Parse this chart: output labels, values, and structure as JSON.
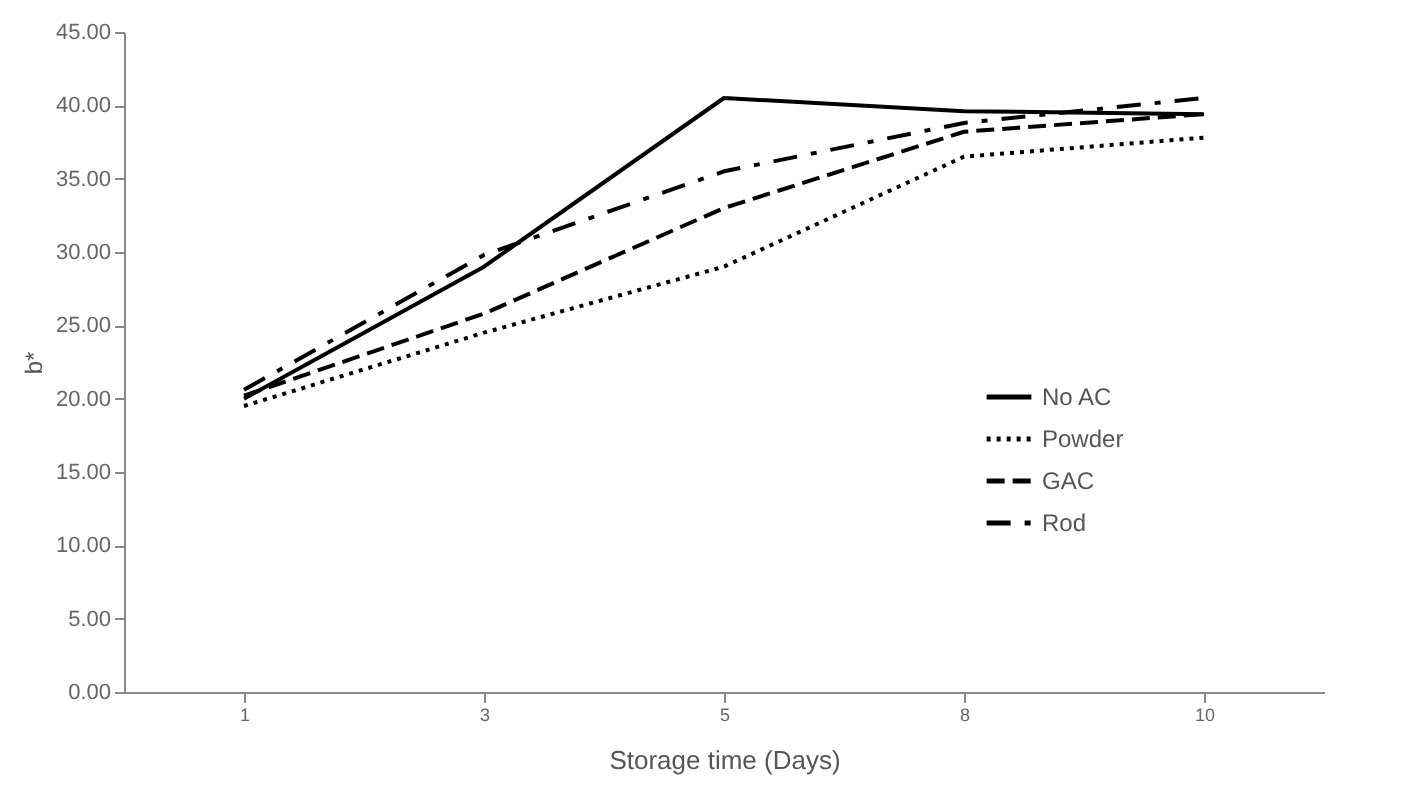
{
  "chart_data": {
    "type": "line",
    "xlabel": "Storage time (Days)",
    "ylabel": "b*",
    "categories": [
      "1",
      "3",
      "5",
      "8",
      "10"
    ],
    "series": [
      {
        "name": "No AC",
        "color": "#000000",
        "line_style": "solid",
        "values": [
          20.0,
          29.0,
          40.5,
          39.6,
          39.4
        ]
      },
      {
        "name": "Powder",
        "color": "#000000",
        "line_style": "dotted",
        "values": [
          19.5,
          24.5,
          29.0,
          36.5,
          37.8
        ]
      },
      {
        "name": "GAC",
        "color": "#000000",
        "line_style": "dashed",
        "values": [
          20.2,
          25.8,
          33.0,
          38.2,
          39.4
        ]
      },
      {
        "name": "Rod",
        "color": "#000000",
        "line_style": "dashdot",
        "values": [
          20.6,
          29.8,
          35.5,
          38.8,
          40.5
        ]
      }
    ],
    "ylim": [
      0,
      45
    ],
    "yticks": [
      {
        "value": 0,
        "label": "0.00"
      },
      {
        "value": 5,
        "label": "5.00"
      },
      {
        "value": 10,
        "label": "10.00"
      },
      {
        "value": 15,
        "label": "15.00"
      },
      {
        "value": 20,
        "label": "20.00"
      },
      {
        "value": 25,
        "label": "25.00"
      },
      {
        "value": 30,
        "label": "30.00"
      },
      {
        "value": 35,
        "label": "35.00"
      },
      {
        "value": 40,
        "label": "40.00"
      },
      {
        "value": 45,
        "label": "45.00"
      }
    ],
    "grid": false,
    "legend": "right",
    "marker": "none"
  }
}
